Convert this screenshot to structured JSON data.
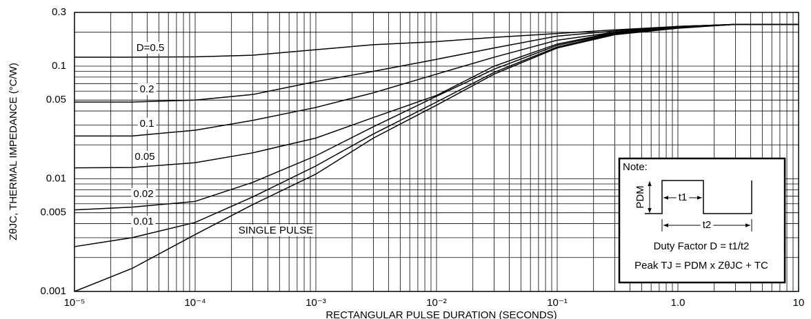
{
  "chart_data": {
    "type": "line",
    "x_label": "RECTANGULAR PULSE DURATION (SECONDS)",
    "y_label": "ZθJC, THERMAL IMPEDANCE (°C/W)",
    "x_scale": "log",
    "y_scale": "log",
    "grid": true,
    "xlim": [
      1e-05,
      10
    ],
    "ylim": [
      0.001,
      0.3
    ],
    "xticks": [
      {
        "value": 1e-05,
        "label": "10⁻⁵"
      },
      {
        "value": 0.0001,
        "label": "10⁻⁴"
      },
      {
        "value": 0.001,
        "label": "10⁻³"
      },
      {
        "value": 0.01,
        "label": "10⁻²"
      },
      {
        "value": 0.1,
        "label": "10⁻¹"
      },
      {
        "value": 1,
        "label": "1.0"
      },
      10
    ],
    "yticks": [
      0.001,
      0.005,
      0.01,
      0.05,
      0.1,
      0.3
    ],
    "x": [
      1e-05,
      3e-05,
      0.0001,
      0.0003,
      0.001,
      0.003,
      0.01,
      0.03,
      0.1,
      0.3,
      1,
      3,
      10
    ],
    "series": [
      {
        "name": "D=0.5",
        "color": "#000000",
        "values": [
          0.12,
          0.12,
          0.121,
          0.125,
          0.14,
          0.155,
          0.165,
          0.18,
          0.195,
          0.21,
          0.225,
          0.235,
          0.235
        ]
      },
      {
        "name": "0.2",
        "color": "#000000",
        "values": [
          0.048,
          0.048,
          0.05,
          0.056,
          0.073,
          0.09,
          0.115,
          0.145,
          0.185,
          0.205,
          0.225,
          0.235,
          0.235
        ]
      },
      {
        "name": "0.1",
        "color": "#000000",
        "values": [
          0.024,
          0.024,
          0.027,
          0.033,
          0.043,
          0.058,
          0.085,
          0.12,
          0.17,
          0.2,
          0.225,
          0.235,
          0.235
        ]
      },
      {
        "name": "0.05",
        "color": "#000000",
        "values": [
          0.0125,
          0.0126,
          0.0139,
          0.017,
          0.023,
          0.035,
          0.055,
          0.1,
          0.157,
          0.2,
          0.222,
          0.235,
          0.235
        ]
      },
      {
        "name": "0.02",
        "color": "#000000",
        "values": [
          0.0053,
          0.0056,
          0.0063,
          0.0093,
          0.016,
          0.029,
          0.054,
          0.094,
          0.153,
          0.197,
          0.219,
          0.235,
          0.235
        ]
      },
      {
        "name": "0.01",
        "color": "#000000",
        "values": [
          0.0025,
          0.003,
          0.0041,
          0.0069,
          0.013,
          0.025,
          0.048,
          0.088,
          0.148,
          0.194,
          0.219,
          0.235,
          0.235
        ]
      },
      {
        "name": "SINGLE PULSE",
        "color": "#000000",
        "values": [
          0.001,
          0.0016,
          0.0032,
          0.0059,
          0.011,
          0.023,
          0.045,
          0.085,
          0.145,
          0.19,
          0.217,
          0.235,
          0.235
        ]
      }
    ],
    "note": {
      "title": "Note:",
      "pdm": "PDM",
      "t1": "t1",
      "t2": "t2",
      "duty": "Duty Factor  D = t1/t2",
      "peak": "Peak TJ = PDM x ZθJC + TC"
    }
  }
}
